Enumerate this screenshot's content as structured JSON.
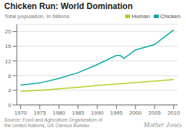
{
  "chart_data": {
    "type": "line",
    "title": "Chicken Run: World Domination",
    "subtitle": "Total population, in billions",
    "annotations": [
      "Source: Food and Agriculture Organization of\nthe United Nations, US Census Bureau",
      "Mother Jones"
    ],
    "x": [
      1970,
      1975,
      1980,
      1985,
      1990,
      1995,
      1996,
      1997,
      2000,
      2005,
      2010
    ],
    "series": [
      {
        "name": "Human",
        "color": "#b5cc1a",
        "values": [
          3.7,
          4.0,
          4.4,
          4.8,
          5.3,
          5.7,
          5.8,
          5.85,
          6.1,
          6.5,
          6.9
        ]
      },
      {
        "name": "Chicken",
        "color": "#00a89c",
        "values": [
          5.4,
          6.0,
          7.2,
          8.8,
          11.0,
          13.5,
          13.5,
          12.7,
          15.0,
          16.5,
          20.5
        ]
      }
    ],
    "xlim": [
      1969,
      2011
    ],
    "xticks": [
      1970,
      1975,
      1980,
      1985,
      1990,
      1995,
      2000,
      2005,
      2010
    ],
    "ylim": [
      0,
      22
    ],
    "yticks": [
      0,
      4,
      8,
      12,
      16,
      20
    ],
    "grid": true,
    "legend": "upper right"
  }
}
